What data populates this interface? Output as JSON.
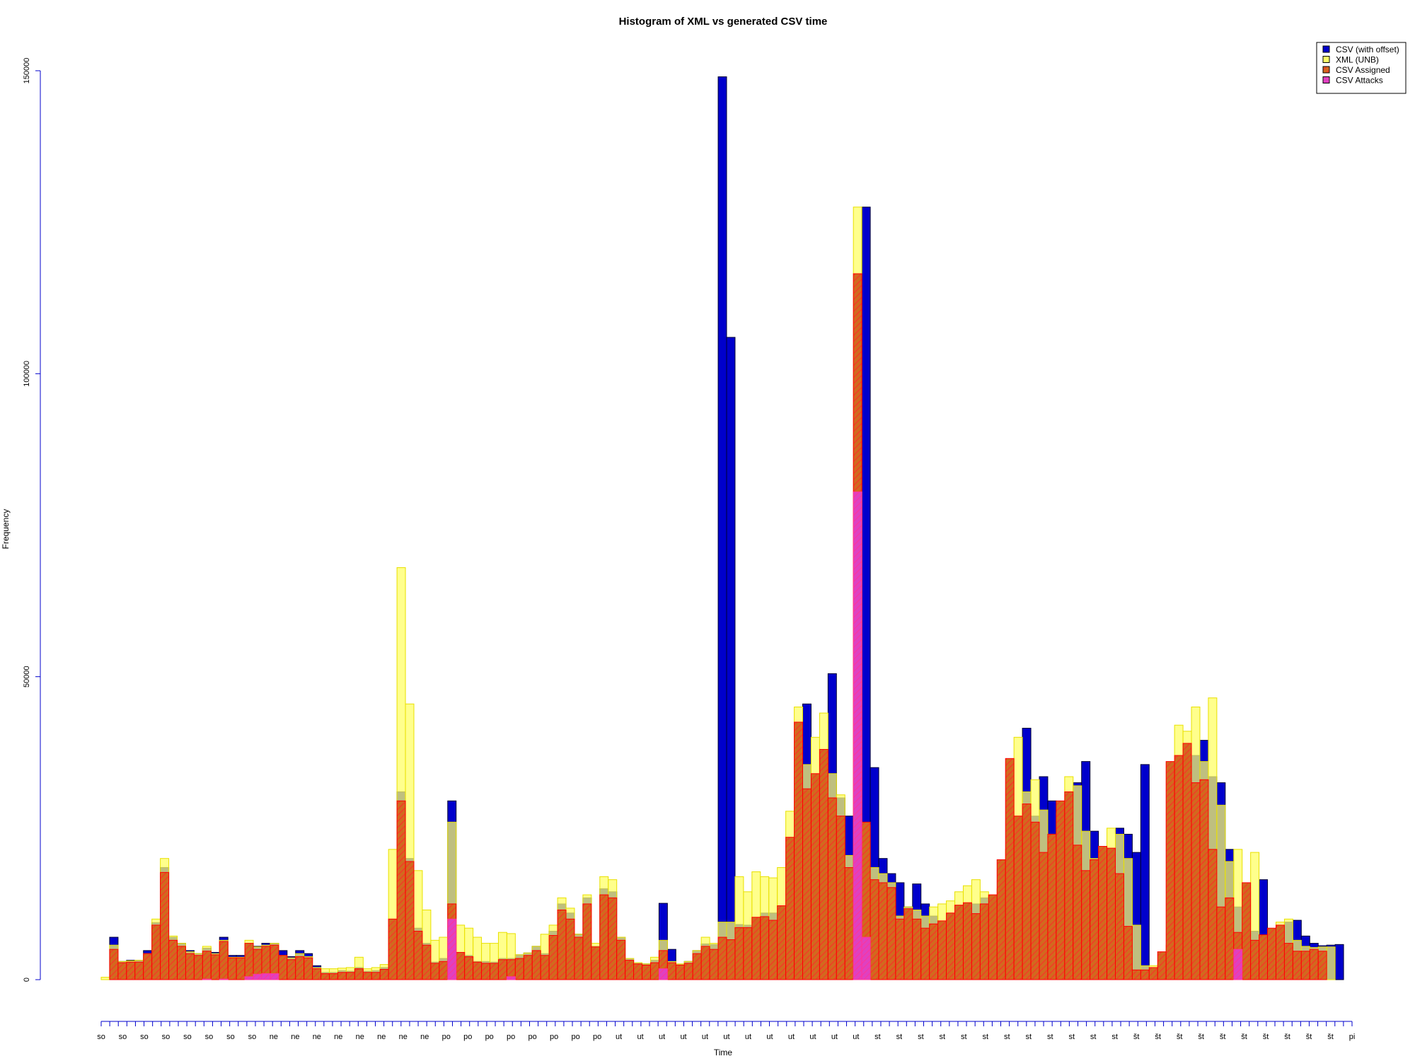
{
  "chart_data": {
    "type": "bar",
    "title": "Histogram of XML vs generated CSV time",
    "xlabel": "Time",
    "ylabel": "Frequency",
    "ylim": [
      0,
      150000
    ],
    "yticks": [
      0,
      50000,
      100000,
      150000
    ],
    "grid": false,
    "legend_position": "top-right",
    "x_tick_labels": [
      "so",
      "so",
      "so",
      "so",
      "so",
      "so",
      "so",
      "so",
      "ne",
      "ne",
      "ne",
      "ne",
      "ne",
      "ne",
      "ne",
      "ne",
      "po",
      "po",
      "po",
      "po",
      "po",
      "po",
      "po",
      "po",
      "ut",
      "ut",
      "ut",
      "ut",
      "ut",
      "ut",
      "ut",
      "ut",
      "ut",
      "ut",
      "ut",
      "ut",
      "st",
      "st",
      "st",
      "st",
      "st",
      "st",
      "st",
      "st",
      "st",
      "st",
      "st",
      "st",
      "št",
      "št",
      "št",
      "št",
      "št",
      "št",
      "št",
      "št",
      "št",
      "št",
      "pi"
    ],
    "x_tick_count": 147,
    "series": [
      {
        "name": "CSV (with offset)",
        "color": "#0000CC",
        "values": [
          0,
          7000,
          3000,
          3200,
          3200,
          4800,
          9400,
          18500,
          7000,
          6000,
          4800,
          4300,
          5200,
          4500,
          7000,
          4000,
          4000,
          6000,
          5500,
          6000,
          6000,
          4800,
          3800,
          4800,
          4300,
          2300,
          1200,
          1200,
          1500,
          1400,
          2000,
          1400,
          1500,
          2000,
          10000,
          31000,
          20000,
          8500,
          6000,
          2900,
          3500,
          29500,
          4500,
          4000,
          3000,
          3000,
          2900,
          3500,
          3500,
          4100,
          4400,
          5500,
          4300,
          8000,
          12500,
          11000,
          7500,
          13500,
          5500,
          15000,
          14500,
          7000,
          3500,
          2800,
          2600,
          3200,
          12600,
          5000,
          2500,
          3000,
          4800,
          5900,
          5800,
          149000,
          106000,
          9100,
          9000,
          10000,
          11000,
          11000,
          10500,
          13000,
          24000,
          45500,
          32500,
          34000,
          50500,
          30000,
          27000,
          20500,
          127500,
          35000,
          20000,
          17500,
          16000,
          12000,
          15800,
          12500,
          10500,
          8800,
          9200,
          10000,
          11500,
          12500,
          13500,
          11500,
          13000,
          16000,
          25500,
          41500,
          27000,
          33500,
          29500,
          24000,
          27000,
          32500,
          36000,
          24500,
          18500,
          21000,
          25000,
          24000,
          21000,
          35500,
          1800,
          1800,
          2200,
          5000,
          36500,
          37000,
          39500,
          33500,
          32500,
          21500,
          12000,
          14500,
          8000,
          16500,
          7000,
          8200,
          9500,
          9800,
          7200,
          6000,
          5600,
          5700,
          5800,
          0
        ],
        "note": "dark-blue bars drawn behind, visible where they exceed the other series"
      },
      {
        "name": "XML (UNB)",
        "color": "#FFFF66",
        "values": [
          400,
          5700,
          3000,
          3100,
          3200,
          4300,
          10000,
          20000,
          7200,
          6000,
          4600,
          4300,
          5500,
          4300,
          6500,
          3700,
          3700,
          6500,
          5400,
          5700,
          6000,
          4000,
          3600,
          4300,
          3800,
          2000,
          1800,
          1800,
          1900,
          2000,
          3700,
          1800,
          2000,
          2500,
          21500,
          68000,
          45500,
          18000,
          11500,
          6500,
          7000,
          26000,
          9000,
          8500,
          7000,
          6000,
          6000,
          7800,
          7600,
          4100,
          4400,
          5500,
          7500,
          9000,
          13500,
          11800,
          7500,
          14000,
          6000,
          17000,
          16500,
          7000,
          3500,
          2800,
          2600,
          3700,
          6500,
          3000,
          2600,
          3000,
          4800,
          7000,
          6000,
          9500,
          9500,
          17000,
          14500,
          17800,
          17000,
          16800,
          18500,
          27800,
          45000,
          35500,
          40000,
          44000,
          34000,
          30500,
          20500,
          127500,
          25500,
          18500,
          17500,
          16000,
          10500,
          12000,
          11500,
          10500,
          12000,
          12500,
          13000,
          14500,
          15500,
          16500,
          14500,
          14000,
          15000,
          21500,
          40000,
          31000,
          33000,
          28000,
          24000,
          27500,
          33500,
          32000,
          24500,
          20000,
          22000,
          25000,
          24000,
          20000,
          9000,
          2300,
          2300,
          2500,
          5700,
          42000,
          41000,
          45000,
          36000,
          46500,
          28800,
          19500,
          21500,
          13000,
          21000,
          6800,
          7700,
          9500,
          10000,
          6500,
          5500,
          5300,
          5400,
          5400,
          0
        ]
      },
      {
        "name": "CSV Assigned",
        "color": "#D2691E",
        "values": [
          0,
          5000,
          2800,
          2900,
          2900,
          4300,
          9000,
          17700,
          6500,
          5500,
          4300,
          4000,
          4700,
          4100,
          6300,
          3600,
          3600,
          6000,
          5000,
          5500,
          5700,
          4000,
          3300,
          3800,
          3600,
          1800,
          1000,
          1000,
          1200,
          1200,
          1800,
          1200,
          1200,
          1700,
          10000,
          29500,
          19500,
          8000,
          5700,
          2700,
          3000,
          12500,
          4500,
          3800,
          2900,
          2700,
          2700,
          3300,
          3300,
          3500,
          4000,
          4800,
          4000,
          7300,
          11500,
          10000,
          7000,
          12500,
          5400,
          14000,
          13500,
          6500,
          3200,
          2600,
          2400,
          2800,
          4800,
          2800,
          2400,
          2700,
          4300,
          5500,
          5000,
          7000,
          6600,
          8600,
          8600,
          10300,
          10400,
          9800,
          12200,
          23500,
          42500,
          31500,
          34000,
          38000,
          30000,
          27000,
          18500,
          116500,
          26000,
          16500,
          16000,
          15200,
          10000,
          11700,
          10000,
          8500,
          9200,
          9700,
          11000,
          12300,
          12700,
          10900,
          12500,
          14000,
          19800,
          36500,
          27000,
          29000,
          26000,
          21000,
          24000,
          29500,
          31000,
          22200,
          18000,
          19800,
          22000,
          21700,
          17500,
          8800,
          1600,
          1600,
          2000,
          4600,
          36000,
          37000,
          39000,
          32500,
          33000,
          21500,
          12000,
          13500,
          7800,
          16000,
          6500,
          7400,
          8500,
          9000,
          6000,
          4700,
          4700,
          5000,
          4700,
          0
        ]
      },
      {
        "name": "CSV Attacks",
        "color": "#E040C0",
        "values": [
          0,
          0,
          0,
          0,
          0,
          0,
          0,
          0,
          0,
          0,
          0,
          0,
          100,
          0,
          100,
          0,
          0,
          500,
          900,
          1000,
          1000,
          0,
          0,
          0,
          0,
          0,
          0,
          0,
          0,
          0,
          0,
          0,
          0,
          0,
          0,
          0,
          0,
          0,
          0,
          0,
          0,
          10000,
          0,
          0,
          0,
          0,
          0,
          0,
          500,
          0,
          0,
          0,
          0,
          0,
          0,
          0,
          0,
          0,
          0,
          0,
          0,
          0,
          0,
          0,
          0,
          0,
          1800,
          0,
          0,
          0,
          0,
          0,
          0,
          0,
          0,
          0,
          0,
          0,
          0,
          0,
          0,
          0,
          0,
          0,
          0,
          0,
          0,
          0,
          0,
          80500,
          7000,
          0,
          0,
          0,
          0,
          0,
          0,
          0,
          0,
          0,
          0,
          0,
          0,
          0,
          0,
          0,
          0,
          0,
          0,
          0,
          0,
          0,
          0,
          0,
          0,
          0,
          0,
          0,
          0,
          0,
          0,
          0,
          0,
          0,
          0,
          0,
          0,
          0,
          0,
          0,
          0,
          0,
          0,
          0,
          5000,
          0,
          0,
          0,
          0,
          0,
          0,
          0,
          0,
          0,
          0,
          0
        ]
      }
    ]
  }
}
